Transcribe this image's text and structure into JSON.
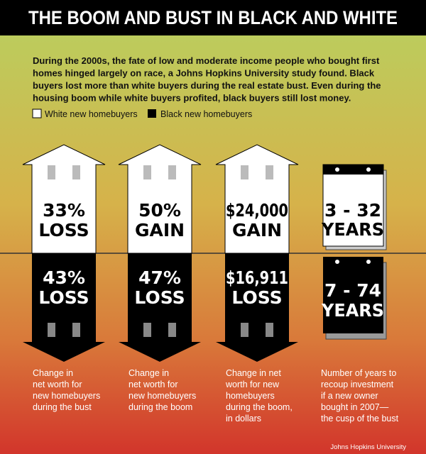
{
  "title": "THE BOOM AND BUST IN BLACK AND WHITE",
  "intro": [
    "During the 2000s, the fate of low and moderate income people who bought first",
    "homes hinged largely on race, a Johns Hopkins University study found. Black",
    "buyers lost more than white buyers during the real estate bust. Even during the",
    "housing boom while white buyers profited, black buyers still lost money."
  ],
  "legend": [
    "White new homebuyers",
    "Black new homebuyers"
  ],
  "columns": [
    {
      "white": [
        "33%",
        "LOSS"
      ],
      "black": [
        "43%",
        "LOSS"
      ],
      "caption": [
        "Change in",
        "net worth for",
        "new homebuyers",
        "during the bust"
      ]
    },
    {
      "white": [
        "50%",
        "GAIN"
      ],
      "black": [
        "47%",
        "LOSS"
      ],
      "caption": [
        "Change in",
        "net worth for",
        "new homebuyers",
        "during the boom"
      ]
    },
    {
      "white": [
        "$24,000",
        "GAIN"
      ],
      "black": [
        "$16,911",
        "LOSS"
      ],
      "caption": [
        "Change in net",
        "worth for new",
        "homebuyers",
        "during the boom,",
        "in dollars"
      ]
    },
    {
      "white": [
        "3 - 32",
        "YEARS"
      ],
      "black": [
        "7 - 74",
        "YEARS"
      ],
      "caption": [
        "Number of years to",
        "recoup investment",
        "if a new owner",
        "bought in 2007—",
        "the cusp of the bust"
      ]
    }
  ],
  "source": "Johns Hopkins University"
}
